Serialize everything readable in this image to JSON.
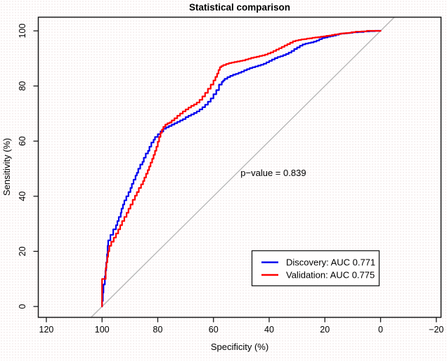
{
  "chart_data": {
    "type": "line",
    "title": "Statistical comparison",
    "xlabel": "Specificity (%)",
    "ylabel": "Sensitivity (%)",
    "xlim": [
      120,
      -20
    ],
    "ylim": [
      0,
      100
    ],
    "x_axis_reversed": true,
    "grid": false,
    "x_ticks": {
      "values": [
        120,
        100,
        80,
        60,
        40,
        20,
        0,
        -20
      ],
      "labels": [
        "120",
        "100",
        "80",
        "60",
        "40",
        "20",
        "0",
        "−20"
      ]
    },
    "y_ticks": {
      "values": [
        0,
        20,
        40,
        60,
        80,
        100
      ],
      "labels": [
        "0",
        "20",
        "40",
        "60",
        "80",
        "100"
      ]
    },
    "annotation": {
      "text": "p−value = 0.839",
      "x": 38.5,
      "y": 47.3
    },
    "reference_line": {
      "from": [
        100,
        0
      ],
      "to": [
        0,
        100
      ],
      "color": "#b4b4b4",
      "extended_to_plot_edges": true
    },
    "legend": {
      "position": "bottom-right",
      "items": [
        {
          "label": "Discovery: AUC 0.771",
          "color": "#0000ee"
        },
        {
          "label": "Validation: AUC 0.775",
          "color": "#ff0000"
        }
      ]
    },
    "series": [
      {
        "name": "Discovery",
        "auc": 0.771,
        "color": "#0000ee",
        "points": [
          [
            100,
            0
          ],
          [
            99.7,
            2
          ],
          [
            99.5,
            5
          ],
          [
            99,
            8
          ],
          [
            98.8,
            11
          ],
          [
            98.5,
            13
          ],
          [
            98.2,
            16
          ],
          [
            98,
            19
          ],
          [
            97.8,
            22
          ],
          [
            97,
            24
          ],
          [
            96,
            26
          ],
          [
            95,
            28
          ],
          [
            94.5,
            29.5
          ],
          [
            94,
            31
          ],
          [
            93.3,
            32.5
          ],
          [
            93,
            34
          ],
          [
            92.5,
            35.5
          ],
          [
            92,
            37
          ],
          [
            91.3,
            38.5
          ],
          [
            90.5,
            40
          ],
          [
            89.8,
            41.5
          ],
          [
            89.3,
            43
          ],
          [
            88.7,
            44.5
          ],
          [
            88,
            46
          ],
          [
            87.5,
            47.5
          ],
          [
            87,
            48.5
          ],
          [
            86.3,
            50
          ],
          [
            85.5,
            51.5
          ],
          [
            85,
            52.5
          ],
          [
            84.3,
            54
          ],
          [
            83.5,
            55.5
          ],
          [
            83,
            56.5
          ],
          [
            82.3,
            58
          ],
          [
            81.5,
            59.5
          ],
          [
            81,
            60.5
          ],
          [
            80,
            61.5
          ],
          [
            79,
            62.5
          ],
          [
            78,
            63.5
          ],
          [
            77,
            64.5
          ],
          [
            76,
            65
          ],
          [
            75,
            65.5
          ],
          [
            74,
            66
          ],
          [
            73,
            66.5
          ],
          [
            72,
            67
          ],
          [
            71,
            67.5
          ],
          [
            70,
            68
          ],
          [
            69,
            68.7
          ],
          [
            68,
            69.2
          ],
          [
            67,
            69.7
          ],
          [
            66,
            70.2
          ],
          [
            65,
            70.8
          ],
          [
            64,
            71.5
          ],
          [
            63,
            72.3
          ],
          [
            62,
            73.2
          ],
          [
            61,
            74.3
          ],
          [
            60,
            75.5
          ],
          [
            59,
            77
          ],
          [
            58,
            78.5
          ],
          [
            57,
            80.5
          ],
          [
            56.5,
            81.5
          ],
          [
            56,
            82
          ],
          [
            55,
            82.6
          ],
          [
            54,
            83.2
          ],
          [
            53,
            83.7
          ],
          [
            52,
            84.1
          ],
          [
            51,
            84.4
          ],
          [
            50,
            84.8
          ],
          [
            49,
            85.2
          ],
          [
            48,
            85.7
          ],
          [
            47,
            86.1
          ],
          [
            46,
            86.5
          ],
          [
            45,
            86.8
          ],
          [
            44,
            87.1
          ],
          [
            43,
            87.4
          ],
          [
            42,
            87.7
          ],
          [
            41,
            88.1
          ],
          [
            40,
            88.6
          ],
          [
            39,
            89.1
          ],
          [
            38,
            89.6
          ],
          [
            37,
            90.1
          ],
          [
            36,
            90.5
          ],
          [
            35,
            90.8
          ],
          [
            34,
            91.2
          ],
          [
            33,
            91.6
          ],
          [
            32,
            92.1
          ],
          [
            31,
            92.7
          ],
          [
            30,
            93.4
          ],
          [
            29,
            94
          ],
          [
            28,
            94.6
          ],
          [
            27,
            95.1
          ],
          [
            26,
            95.4
          ],
          [
            25,
            95.6
          ],
          [
            24,
            95.8
          ],
          [
            23,
            96.1
          ],
          [
            22,
            96.5
          ],
          [
            21,
            97
          ],
          [
            20,
            97.4
          ],
          [
            19,
            97.6
          ],
          [
            18,
            97.9
          ],
          [
            17,
            98.1
          ],
          [
            16,
            98.3
          ],
          [
            15,
            98.6
          ],
          [
            14,
            98.9
          ],
          [
            13,
            99
          ],
          [
            12,
            99.1
          ],
          [
            11,
            99.2
          ],
          [
            10,
            99.3
          ],
          [
            8,
            99.5
          ],
          [
            6,
            99.6
          ],
          [
            4,
            99.8
          ],
          [
            2,
            99.9
          ],
          [
            0,
            100
          ]
        ]
      },
      {
        "name": "Validation",
        "auc": 0.775,
        "color": "#ff0000",
        "points": [
          [
            100,
            0
          ],
          [
            100,
            3
          ],
          [
            100,
            6
          ],
          [
            100,
            10
          ],
          [
            98.7,
            10
          ],
          [
            98.7,
            12
          ],
          [
            98.4,
            14
          ],
          [
            98.1,
            16
          ],
          [
            97.8,
            18
          ],
          [
            97.4,
            20
          ],
          [
            96.7,
            22
          ],
          [
            95.8,
            23.5
          ],
          [
            95,
            25
          ],
          [
            94.2,
            26.5
          ],
          [
            93.5,
            28
          ],
          [
            92.8,
            29.5
          ],
          [
            92,
            31
          ],
          [
            91.2,
            32.5
          ],
          [
            90.5,
            34
          ],
          [
            89.8,
            35.5
          ],
          [
            89,
            37
          ],
          [
            88.2,
            38.7
          ],
          [
            87.5,
            40.2
          ],
          [
            86.8,
            41.5
          ],
          [
            86,
            43
          ],
          [
            85.3,
            44.3
          ],
          [
            84.8,
            45.5
          ],
          [
            84.2,
            46.8
          ],
          [
            83.6,
            48.2
          ],
          [
            83.1,
            49.5
          ],
          [
            82.6,
            50.8
          ],
          [
            82,
            52.2
          ],
          [
            81.5,
            53.6
          ],
          [
            81,
            55
          ],
          [
            80.5,
            56.5
          ],
          [
            80,
            58
          ],
          [
            79.5,
            59.8
          ],
          [
            79,
            61.5
          ],
          [
            78.5,
            63
          ],
          [
            78,
            64.2
          ],
          [
            77.3,
            65.2
          ],
          [
            76.5,
            66
          ],
          [
            75.7,
            66.5
          ],
          [
            75,
            66.8
          ],
          [
            74,
            67.5
          ],
          [
            73,
            68.3
          ],
          [
            72,
            69.2
          ],
          [
            71,
            70
          ],
          [
            70,
            70.8
          ],
          [
            69,
            71.5
          ],
          [
            68,
            72.2
          ],
          [
            67,
            72.8
          ],
          [
            66,
            73.3
          ],
          [
            65,
            74
          ],
          [
            64,
            75
          ],
          [
            63,
            76.2
          ],
          [
            62,
            77.5
          ],
          [
            61,
            79
          ],
          [
            60,
            80.5
          ],
          [
            59.3,
            82
          ],
          [
            58.7,
            83.3
          ],
          [
            58.2,
            84.5
          ],
          [
            57.7,
            85.8
          ],
          [
            57.2,
            86.8
          ],
          [
            56.5,
            87.2
          ],
          [
            55.5,
            87.6
          ],
          [
            54.5,
            88
          ],
          [
            53.5,
            88.3
          ],
          [
            52.5,
            88.5
          ],
          [
            51.5,
            88.7
          ],
          [
            50.5,
            88.9
          ],
          [
            49.5,
            89.1
          ],
          [
            48.5,
            89.3
          ],
          [
            47.5,
            89.6
          ],
          [
            46.5,
            89.9
          ],
          [
            45.5,
            90.2
          ],
          [
            44.5,
            90.4
          ],
          [
            43.5,
            90.6
          ],
          [
            42.5,
            90.9
          ],
          [
            41.5,
            91.1
          ],
          [
            40.5,
            91.4
          ],
          [
            39.5,
            91.8
          ],
          [
            38.5,
            92.2
          ],
          [
            37.5,
            92.7
          ],
          [
            36.5,
            93.2
          ],
          [
            35.5,
            93.7
          ],
          [
            34.5,
            94.2
          ],
          [
            33.5,
            94.7
          ],
          [
            32.5,
            95.2
          ],
          [
            31.5,
            95.7
          ],
          [
            30.5,
            96.2
          ],
          [
            29.5,
            96.5
          ],
          [
            28.5,
            96.7
          ],
          [
            27.5,
            96.9
          ],
          [
            26.5,
            97
          ],
          [
            25.5,
            97.2
          ],
          [
            24.5,
            97.3
          ],
          [
            23.5,
            97.5
          ],
          [
            22.5,
            97.6
          ],
          [
            21.5,
            97.7
          ],
          [
            20.5,
            97.9
          ],
          [
            19.5,
            98
          ],
          [
            18.5,
            98.2
          ],
          [
            17.5,
            98.3
          ],
          [
            16.5,
            98.5
          ],
          [
            15.5,
            98.7
          ],
          [
            14.5,
            98.8
          ],
          [
            13.5,
            99
          ],
          [
            12.5,
            99.1
          ],
          [
            11.5,
            99.2
          ],
          [
            10.5,
            99.3
          ],
          [
            9,
            99.5
          ],
          [
            7,
            99.7
          ],
          [
            5,
            99.8
          ],
          [
            3,
            100
          ],
          [
            1.5,
            100
          ],
          [
            0,
            100
          ]
        ]
      }
    ]
  }
}
